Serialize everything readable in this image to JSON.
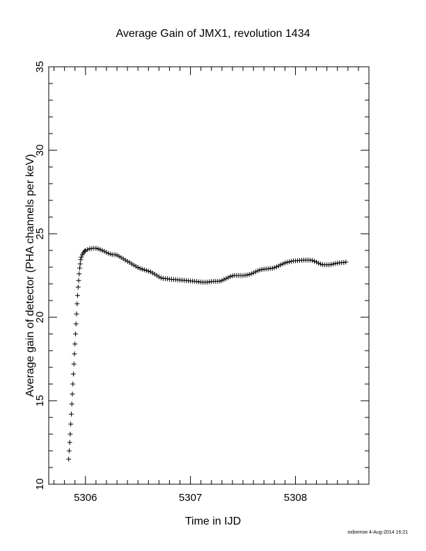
{
  "chart_data": {
    "type": "scatter",
    "title": "Average Gain of JMX1, revolution 1434",
    "xlabel": "Time in IJD",
    "ylabel": "Average gain of detector (PHA channels per keV)",
    "xlim": [
      5305.65,
      5308.7
    ],
    "ylim": [
      10,
      35
    ],
    "xticks": [
      5306,
      5307,
      5308
    ],
    "yticks": [
      10,
      15,
      20,
      25,
      30,
      35
    ],
    "grid": false,
    "marker": "plus",
    "points": [
      [
        5305.84,
        11.5
      ],
      [
        5305.845,
        12.0
      ],
      [
        5305.85,
        12.5
      ],
      [
        5305.855,
        13.0
      ],
      [
        5305.86,
        13.6
      ],
      [
        5305.865,
        14.2
      ],
      [
        5305.87,
        14.8
      ],
      [
        5305.875,
        15.4
      ],
      [
        5305.88,
        16.0
      ],
      [
        5305.885,
        16.6
      ],
      [
        5305.89,
        17.2
      ],
      [
        5305.895,
        17.8
      ],
      [
        5305.9,
        18.4
      ],
      [
        5305.905,
        19.0
      ],
      [
        5305.91,
        19.6
      ],
      [
        5305.915,
        20.2
      ],
      [
        5305.92,
        20.8
      ],
      [
        5305.925,
        21.3
      ],
      [
        5305.93,
        21.8
      ],
      [
        5305.935,
        22.2
      ],
      [
        5305.94,
        22.6
      ],
      [
        5305.945,
        22.95
      ],
      [
        5305.95,
        23.2
      ],
      [
        5305.955,
        23.45
      ],
      [
        5305.96,
        23.6
      ],
      [
        5305.97,
        23.75
      ],
      [
        5305.98,
        23.85
      ],
      [
        5305.99,
        23.95
      ],
      [
        5306.0,
        24.0
      ],
      [
        5306.02,
        24.05
      ],
      [
        5306.04,
        24.1
      ],
      [
        5306.06,
        24.12
      ],
      [
        5306.08,
        24.13
      ],
      [
        5306.1,
        24.13
      ],
      [
        5306.12,
        24.1
      ],
      [
        5306.14,
        24.05
      ],
      [
        5306.16,
        24.0
      ],
      [
        5306.18,
        23.95
      ],
      [
        5306.2,
        23.88
      ],
      [
        5306.22,
        23.82
      ],
      [
        5306.24,
        23.78
      ],
      [
        5306.26,
        23.75
      ],
      [
        5306.28,
        23.75
      ],
      [
        5306.3,
        23.72
      ],
      [
        5306.32,
        23.65
      ],
      [
        5306.34,
        23.58
      ],
      [
        5306.36,
        23.5
      ],
      [
        5306.38,
        23.42
      ],
      [
        5306.4,
        23.35
      ],
      [
        5306.42,
        23.28
      ],
      [
        5306.44,
        23.2
      ],
      [
        5306.46,
        23.12
      ],
      [
        5306.48,
        23.05
      ],
      [
        5306.5,
        22.98
      ],
      [
        5306.52,
        22.92
      ],
      [
        5306.54,
        22.88
      ],
      [
        5306.56,
        22.84
      ],
      [
        5306.58,
        22.8
      ],
      [
        5306.6,
        22.76
      ],
      [
        5306.62,
        22.72
      ],
      [
        5306.64,
        22.65
      ],
      [
        5306.66,
        22.58
      ],
      [
        5306.68,
        22.5
      ],
      [
        5306.7,
        22.42
      ],
      [
        5306.72,
        22.36
      ],
      [
        5306.74,
        22.33
      ],
      [
        5306.76,
        22.31
      ],
      [
        5306.78,
        22.3
      ],
      [
        5306.8,
        22.28
      ],
      [
        5306.82,
        22.27
      ],
      [
        5306.84,
        22.26
      ],
      [
        5306.86,
        22.25
      ],
      [
        5306.88,
        22.24
      ],
      [
        5306.9,
        22.23
      ],
      [
        5306.92,
        22.22
      ],
      [
        5306.94,
        22.21
      ],
      [
        5306.96,
        22.2
      ],
      [
        5306.98,
        22.19
      ],
      [
        5307.0,
        22.17
      ],
      [
        5307.02,
        22.16
      ],
      [
        5307.04,
        22.15
      ],
      [
        5307.06,
        22.14
      ],
      [
        5307.08,
        22.12
      ],
      [
        5307.1,
        22.11
      ],
      [
        5307.12,
        22.1
      ],
      [
        5307.14,
        22.1
      ],
      [
        5307.16,
        22.1
      ],
      [
        5307.18,
        22.12
      ],
      [
        5307.2,
        22.14
      ],
      [
        5307.22,
        22.15
      ],
      [
        5307.24,
        22.15
      ],
      [
        5307.26,
        22.15
      ],
      [
        5307.28,
        22.16
      ],
      [
        5307.3,
        22.2
      ],
      [
        5307.32,
        22.26
      ],
      [
        5307.34,
        22.32
      ],
      [
        5307.36,
        22.38
      ],
      [
        5307.38,
        22.44
      ],
      [
        5307.4,
        22.48
      ],
      [
        5307.42,
        22.5
      ],
      [
        5307.44,
        22.5
      ],
      [
        5307.46,
        22.5
      ],
      [
        5307.48,
        22.5
      ],
      [
        5307.5,
        22.5
      ],
      [
        5307.52,
        22.51
      ],
      [
        5307.54,
        22.53
      ],
      [
        5307.56,
        22.56
      ],
      [
        5307.58,
        22.6
      ],
      [
        5307.6,
        22.66
      ],
      [
        5307.62,
        22.72
      ],
      [
        5307.64,
        22.78
      ],
      [
        5307.66,
        22.83
      ],
      [
        5307.68,
        22.86
      ],
      [
        5307.7,
        22.88
      ],
      [
        5307.72,
        22.89
      ],
      [
        5307.74,
        22.9
      ],
      [
        5307.76,
        22.92
      ],
      [
        5307.78,
        22.94
      ],
      [
        5307.8,
        22.97
      ],
      [
        5307.82,
        23.02
      ],
      [
        5307.84,
        23.08
      ],
      [
        5307.86,
        23.14
      ],
      [
        5307.88,
        23.2
      ],
      [
        5307.9,
        23.25
      ],
      [
        5307.92,
        23.29
      ],
      [
        5307.94,
        23.32
      ],
      [
        5307.96,
        23.35
      ],
      [
        5307.98,
        23.37
      ],
      [
        5308.0,
        23.38
      ],
      [
        5308.02,
        23.39
      ],
      [
        5308.04,
        23.4
      ],
      [
        5308.06,
        23.41
      ],
      [
        5308.08,
        23.42
      ],
      [
        5308.1,
        23.42
      ],
      [
        5308.12,
        23.42
      ],
      [
        5308.14,
        23.42
      ],
      [
        5308.16,
        23.4
      ],
      [
        5308.18,
        23.36
      ],
      [
        5308.2,
        23.3
      ],
      [
        5308.22,
        23.24
      ],
      [
        5308.24,
        23.18
      ],
      [
        5308.26,
        23.15
      ],
      [
        5308.28,
        23.14
      ],
      [
        5308.3,
        23.14
      ],
      [
        5308.32,
        23.14
      ],
      [
        5308.34,
        23.16
      ],
      [
        5308.36,
        23.19
      ],
      [
        5308.38,
        23.22
      ],
      [
        5308.4,
        23.24
      ],
      [
        5308.42,
        23.26
      ],
      [
        5308.44,
        23.27
      ],
      [
        5308.46,
        23.28
      ],
      [
        5308.48,
        23.3
      ]
    ]
  },
  "footer": {
    "credit": "oxborrow  4-Aug-2014 16:21"
  }
}
